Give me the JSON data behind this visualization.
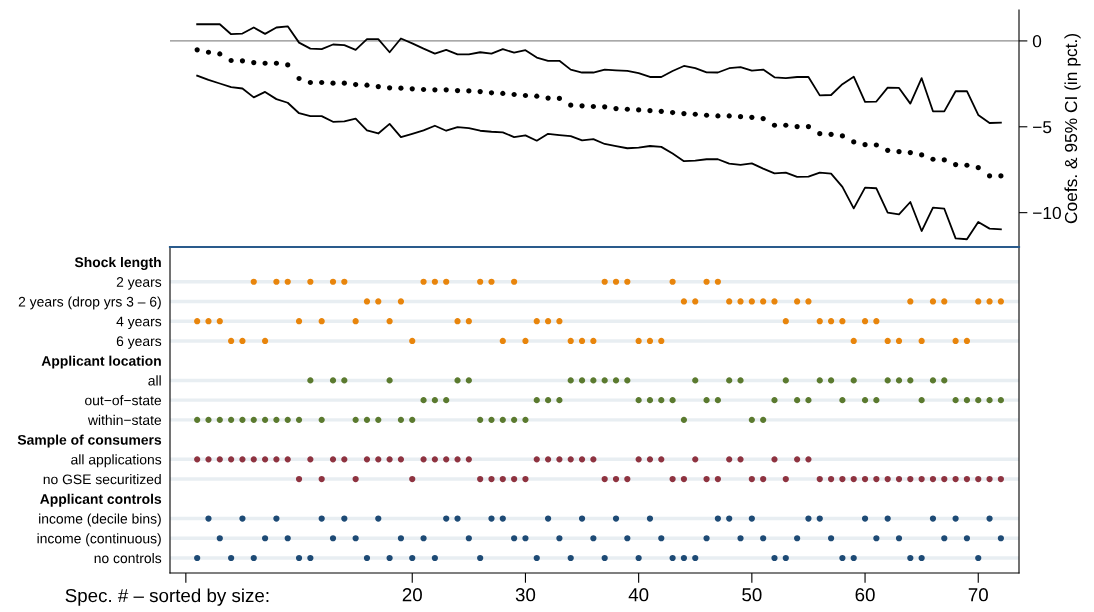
{
  "chart_data": [
    {
      "type": "line",
      "ylabel": "Coefs. & 95% CI (in pct.)",
      "x": [
        1,
        2,
        3,
        4,
        5,
        6,
        7,
        8,
        9,
        10,
        11,
        12,
        13,
        14,
        15,
        16,
        17,
        18,
        19,
        20,
        21,
        22,
        23,
        24,
        25,
        26,
        27,
        28,
        29,
        30,
        31,
        32,
        33,
        34,
        35,
        36,
        37,
        38,
        39,
        40,
        41,
        42,
        43,
        44,
        45,
        46,
        47,
        48,
        49,
        50,
        51,
        52,
        53,
        54,
        55,
        56,
        57,
        58,
        59,
        60,
        61,
        62,
        63,
        64,
        65,
        66,
        67,
        68,
        69,
        70,
        71,
        72
      ],
      "series": [
        {
          "type": "scatter",
          "marker": "circle",
          "color": "#000000",
          "values": [
            -0.52,
            -0.66,
            -0.76,
            -1.14,
            -1.16,
            -1.26,
            -1.3,
            -1.3,
            -1.4,
            -2.19,
            -2.42,
            -2.42,
            -2.46,
            -2.46,
            -2.54,
            -2.58,
            -2.66,
            -2.73,
            -2.75,
            -2.79,
            -2.83,
            -2.85,
            -2.85,
            -2.89,
            -2.91,
            -2.95,
            -3.02,
            -3.06,
            -3.12,
            -3.18,
            -3.22,
            -3.33,
            -3.35,
            -3.74,
            -3.78,
            -3.82,
            -3.84,
            -3.94,
            -3.98,
            -4.02,
            -4.06,
            -4.1,
            -4.17,
            -4.23,
            -4.27,
            -4.33,
            -4.37,
            -4.37,
            -4.41,
            -4.45,
            -4.52,
            -4.91,
            -4.91,
            -4.99,
            -4.99,
            -5.4,
            -5.44,
            -5.53,
            -5.88,
            -6.04,
            -6.06,
            -6.37,
            -6.45,
            -6.5,
            -6.64,
            -6.89,
            -6.93,
            -7.2,
            -7.24,
            -7.38,
            -7.86,
            -7.86
          ]
        },
        {
          "type": "line",
          "color": "#000000",
          "values": [
            0.97,
            0.97,
            0.97,
            0.39,
            0.43,
            0.78,
            0.41,
            0.78,
            0.85,
            -0.1,
            -0.45,
            -0.48,
            -0.21,
            -0.25,
            -0.52,
            0.1,
            0.1,
            -0.66,
            0.14,
            -0.14,
            -0.45,
            -0.74,
            -0.52,
            -0.78,
            -0.78,
            -0.66,
            -0.74,
            -0.48,
            -0.68,
            -0.54,
            -0.97,
            -1.16,
            -1.16,
            -1.67,
            -1.84,
            -1.84,
            -1.67,
            -1.71,
            -1.75,
            -1.88,
            -2.1,
            -2.1,
            -1.75,
            -1.46,
            -1.59,
            -1.83,
            -1.84,
            -1.59,
            -1.53,
            -1.73,
            -1.67,
            -2.12,
            -2.17,
            -2.1,
            -2.1,
            -3.17,
            -3.15,
            -2.52,
            -2.08,
            -3.55,
            -3.53,
            -2.72,
            -2.74,
            -3.65,
            -2.17,
            -4.1,
            -4.1,
            -2.93,
            -2.93,
            -4.31,
            -4.78,
            -4.76
          ]
        },
        {
          "type": "line",
          "color": "#000000",
          "values": [
            -2.02,
            -2.27,
            -2.48,
            -2.69,
            -2.77,
            -3.29,
            -2.97,
            -3.39,
            -3.6,
            -4.21,
            -4.38,
            -4.38,
            -4.71,
            -4.69,
            -4.52,
            -5.21,
            -5.39,
            -4.83,
            -5.6,
            -5.41,
            -5.21,
            -4.94,
            -5.23,
            -5.02,
            -5.08,
            -5.23,
            -5.29,
            -5.33,
            -5.6,
            -5.5,
            -5.81,
            -5.41,
            -5.48,
            -5.54,
            -5.79,
            -5.72,
            -6.0,
            -6.12,
            -6.25,
            -6.21,
            -6.12,
            -6.17,
            -6.56,
            -7.0,
            -6.97,
            -6.89,
            -6.89,
            -7.15,
            -7.22,
            -7.13,
            -7.44,
            -7.71,
            -7.67,
            -7.92,
            -7.9,
            -7.67,
            -7.73,
            -8.5,
            -9.75,
            -8.54,
            -8.58,
            -10.0,
            -10.1,
            -9.38,
            -11.07,
            -9.71,
            -9.77,
            -11.5,
            -11.55,
            -10.54,
            -10.93,
            -10.97
          ]
        }
      ],
      "xlim": [
        -1.4,
        73.6
      ],
      "ylim": [
        -12.0,
        1.8
      ],
      "yticks": [
        0,
        {
          "value": -5,
          "label": "−5"
        },
        {
          "value": -10,
          "label": "−10"
        }
      ],
      "ref_lines": [
        {
          "axis": "y",
          "value": 0,
          "color": "#8c8c8c"
        }
      ],
      "tick_labels": "y"
    },
    {
      "type": "scatter",
      "orientation": "horizontal",
      "xlabel": "Spec. # – sorted by size:",
      "categories": [
        "Shock length",
        "2 years",
        "2 years (drop yrs 3 – 6)",
        "4 years",
        "6 years",
        "Applicant location",
        "all",
        "out−of−state",
        "within−state",
        "Sample of consumers",
        "all applications",
        "no GSE securitized",
        "Applicant controls",
        "income (decile bins)",
        "income (continuous)",
        "no controls"
      ],
      "xlim": [
        -1.4,
        73.6
      ],
      "xticks": [
        {
          "value": 0,
          "label": null
        },
        20,
        30,
        40,
        50,
        60,
        70
      ],
      "grid": "y",
      "marker": "circle",
      "series": [
        {
          "color": "#e8850c",
          "x": [
            "2 years",
            "2 years",
            "2 years",
            "2 years",
            "2 years",
            "2 years",
            "2 years",
            "2 years",
            "2 years",
            "2 years",
            "2 years",
            "2 years",
            "2 years",
            "2 years",
            "2 years",
            "2 years",
            "2 years",
            "2 years"
          ],
          "values": [
            6,
            8,
            9,
            11,
            13,
            14,
            21,
            22,
            23,
            26,
            27,
            29,
            37,
            38,
            39,
            43,
            46,
            47
          ]
        },
        {
          "color": "#e8850c",
          "x": [
            "2 years (drop yrs 3 – 6)",
            "2 years (drop yrs 3 – 6)",
            "2 years (drop yrs 3 – 6)",
            "2 years (drop yrs 3 – 6)",
            "2 years (drop yrs 3 – 6)",
            "2 years (drop yrs 3 – 6)",
            "2 years (drop yrs 3 – 6)",
            "2 years (drop yrs 3 – 6)",
            "2 years (drop yrs 3 – 6)",
            "2 years (drop yrs 3 – 6)",
            "2 years (drop yrs 3 – 6)",
            "2 years (drop yrs 3 – 6)",
            "2 years (drop yrs 3 – 6)",
            "2 years (drop yrs 3 – 6)",
            "2 years (drop yrs 3 – 6)",
            "2 years (drop yrs 3 – 6)",
            "2 years (drop yrs 3 – 6)",
            "2 years (drop yrs 3 – 6)"
          ],
          "values": [
            16,
            17,
            19,
            44,
            45,
            48,
            49,
            50,
            51,
            52,
            54,
            55,
            64,
            66,
            67,
            70,
            71,
            72
          ]
        },
        {
          "color": "#e8850c",
          "x": [
            "4 years",
            "4 years",
            "4 years",
            "4 years",
            "4 years",
            "4 years",
            "4 years",
            "4 years",
            "4 years",
            "4 years",
            "4 years",
            "4 years",
            "4 years",
            "4 years",
            "4 years",
            "4 years",
            "4 years",
            "4 years"
          ],
          "values": [
            1,
            2,
            3,
            10,
            12,
            15,
            18,
            24,
            25,
            31,
            32,
            33,
            53,
            56,
            57,
            58,
            60,
            61
          ]
        },
        {
          "color": "#e8850c",
          "x": [
            "6 years",
            "6 years",
            "6 years",
            "6 years",
            "6 years",
            "6 years",
            "6 years",
            "6 years",
            "6 years",
            "6 years",
            "6 years",
            "6 years",
            "6 years",
            "6 years",
            "6 years",
            "6 years",
            "6 years",
            "6 years"
          ],
          "values": [
            4,
            5,
            7,
            20,
            28,
            30,
            34,
            35,
            36,
            40,
            41,
            42,
            59,
            62,
            63,
            65,
            68,
            69
          ]
        },
        {
          "color": "#5b7a2f",
          "x": [
            "all",
            "all",
            "all",
            "all",
            "all",
            "all",
            "all",
            "all",
            "all",
            "all",
            "all",
            "all",
            "all",
            "all",
            "all",
            "all",
            "all",
            "all",
            "all",
            "all",
            "all",
            "all",
            "all",
            "all"
          ],
          "values": [
            11,
            13,
            14,
            18,
            24,
            25,
            34,
            35,
            36,
            37,
            38,
            39,
            45,
            48,
            49,
            53,
            56,
            57,
            59,
            62,
            63,
            64,
            66,
            67
          ]
        },
        {
          "color": "#5b7a2f",
          "x": [
            "out−of−state",
            "out−of−state",
            "out−of−state",
            "out−of−state",
            "out−of−state",
            "out−of−state",
            "out−of−state",
            "out−of−state",
            "out−of−state",
            "out−of−state",
            "out−of−state",
            "out−of−state",
            "out−of−state",
            "out−of−state",
            "out−of−state",
            "out−of−state",
            "out−of−state",
            "out−of−state",
            "out−of−state",
            "out−of−state",
            "out−of−state",
            "out−of−state",
            "out−of−state",
            "out−of−state"
          ],
          "values": [
            21,
            22,
            23,
            31,
            32,
            33,
            40,
            41,
            42,
            43,
            46,
            47,
            52,
            54,
            55,
            58,
            60,
            61,
            65,
            68,
            69,
            70,
            71,
            72
          ]
        },
        {
          "color": "#5b7a2f",
          "x": [
            "within−state",
            "within−state",
            "within−state",
            "within−state",
            "within−state",
            "within−state",
            "within−state",
            "within−state",
            "within−state",
            "within−state",
            "within−state",
            "within−state",
            "within−state",
            "within−state",
            "within−state",
            "within−state",
            "within−state",
            "within−state",
            "within−state",
            "within−state",
            "within−state",
            "within−state",
            "within−state",
            "within−state"
          ],
          "values": [
            1,
            2,
            3,
            4,
            5,
            6,
            7,
            8,
            9,
            10,
            12,
            15,
            16,
            17,
            19,
            20,
            26,
            27,
            28,
            29,
            30,
            44,
            50,
            51
          ]
        },
        {
          "color": "#8e3340",
          "x": [
            "all applications",
            "all applications",
            "all applications",
            "all applications",
            "all applications",
            "all applications",
            "all applications",
            "all applications",
            "all applications",
            "all applications",
            "all applications",
            "all applications",
            "all applications",
            "all applications",
            "all applications",
            "all applications",
            "all applications",
            "all applications",
            "all applications",
            "all applications",
            "all applications",
            "all applications",
            "all applications",
            "all applications",
            "all applications",
            "all applications",
            "all applications",
            "all applications",
            "all applications",
            "all applications",
            "all applications",
            "all applications",
            "all applications",
            "all applications",
            "all applications",
            "all applications"
          ],
          "values": [
            1,
            2,
            3,
            4,
            5,
            6,
            7,
            8,
            9,
            11,
            13,
            14,
            16,
            17,
            18,
            19,
            21,
            22,
            23,
            24,
            25,
            31,
            32,
            33,
            34,
            35,
            36,
            40,
            41,
            42,
            45,
            48,
            49,
            52,
            54,
            55
          ]
        },
        {
          "color": "#8e3340",
          "x": [
            "no GSE securitized",
            "no GSE securitized",
            "no GSE securitized",
            "no GSE securitized",
            "no GSE securitized",
            "no GSE securitized",
            "no GSE securitized",
            "no GSE securitized",
            "no GSE securitized",
            "no GSE securitized",
            "no GSE securitized",
            "no GSE securitized",
            "no GSE securitized",
            "no GSE securitized",
            "no GSE securitized",
            "no GSE securitized",
            "no GSE securitized",
            "no GSE securitized",
            "no GSE securitized",
            "no GSE securitized",
            "no GSE securitized",
            "no GSE securitized",
            "no GSE securitized",
            "no GSE securitized",
            "no GSE securitized",
            "no GSE securitized",
            "no GSE securitized",
            "no GSE securitized",
            "no GSE securitized",
            "no GSE securitized",
            "no GSE securitized",
            "no GSE securitized",
            "no GSE securitized",
            "no GSE securitized",
            "no GSE securitized",
            "no GSE securitized"
          ],
          "values": [
            10,
            12,
            15,
            20,
            26,
            27,
            28,
            29,
            30,
            37,
            38,
            39,
            43,
            44,
            46,
            47,
            50,
            51,
            53,
            56,
            57,
            58,
            59,
            60,
            61,
            62,
            63,
            64,
            65,
            66,
            67,
            68,
            69,
            70,
            71,
            72
          ]
        },
        {
          "color": "#1d4a75",
          "x": [
            "income (decile bins)",
            "income (decile bins)",
            "income (decile bins)",
            "income (decile bins)",
            "income (decile bins)",
            "income (decile bins)",
            "income (decile bins)",
            "income (decile bins)",
            "income (decile bins)",
            "income (decile bins)",
            "income (decile bins)",
            "income (decile bins)",
            "income (decile bins)",
            "income (decile bins)",
            "income (decile bins)",
            "income (decile bins)",
            "income (decile bins)",
            "income (decile bins)",
            "income (decile bins)",
            "income (decile bins)",
            "income (decile bins)",
            "income (decile bins)",
            "income (decile bins)",
            "income (decile bins)"
          ],
          "values": [
            2,
            5,
            8,
            12,
            14,
            17,
            23,
            24,
            27,
            28,
            32,
            35,
            38,
            41,
            47,
            48,
            50,
            55,
            56,
            60,
            62,
            66,
            68,
            71
          ]
        },
        {
          "color": "#1d4a75",
          "x": [
            "income (continuous)",
            "income (continuous)",
            "income (continuous)",
            "income (continuous)",
            "income (continuous)",
            "income (continuous)",
            "income (continuous)",
            "income (continuous)",
            "income (continuous)",
            "income (continuous)",
            "income (continuous)",
            "income (continuous)",
            "income (continuous)",
            "income (continuous)",
            "income (continuous)",
            "income (continuous)",
            "income (continuous)",
            "income (continuous)",
            "income (continuous)",
            "income (continuous)",
            "income (continuous)",
            "income (continuous)",
            "income (continuous)",
            "income (continuous)"
          ],
          "values": [
            3,
            7,
            9,
            13,
            15,
            19,
            21,
            25,
            29,
            30,
            33,
            36,
            39,
            42,
            46,
            49,
            51,
            54,
            57,
            61,
            63,
            67,
            69,
            72
          ]
        },
        {
          "color": "#1d4a75",
          "x": [
            "no controls",
            "no controls",
            "no controls",
            "no controls",
            "no controls",
            "no controls",
            "no controls",
            "no controls",
            "no controls",
            "no controls",
            "no controls",
            "no controls",
            "no controls",
            "no controls",
            "no controls",
            "no controls",
            "no controls",
            "no controls",
            "no controls",
            "no controls",
            "no controls",
            "no controls",
            "no controls",
            "no controls"
          ],
          "values": [
            1,
            4,
            6,
            10,
            11,
            16,
            18,
            20,
            22,
            26,
            31,
            34,
            37,
            40,
            43,
            44,
            45,
            52,
            53,
            58,
            59,
            64,
            65,
            70
          ]
        }
      ]
    }
  ]
}
